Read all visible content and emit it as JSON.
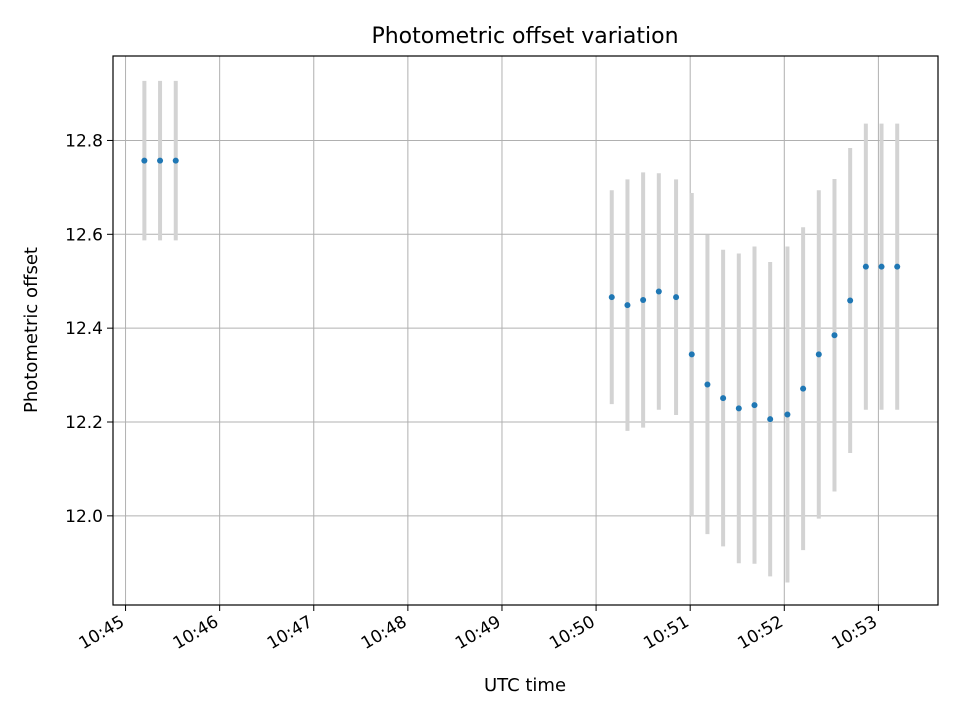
{
  "chart_data": {
    "type": "scatter",
    "title": "Photometric offset variation",
    "xlabel": "UTC time",
    "ylabel": "Photometric offset",
    "xlim": [
      "10:44:52",
      "10:53:38"
    ],
    "ylim": [
      11.81,
      12.98
    ],
    "grid": true,
    "x_ticks": [
      "10:45",
      "10:46",
      "10:47",
      "10:48",
      "10:49",
      "10:50",
      "10:51",
      "10:52",
      "10:53"
    ],
    "y_ticks": [
      "12.0",
      "12.2",
      "12.4",
      "12.6",
      "12.8"
    ],
    "colors": {
      "marker": "#1f77b4",
      "errorbar": "#d3d3d3",
      "grid": "#b0b0b0"
    },
    "series": [
      {
        "points": [
          {
            "x": "10:45:12",
            "y": 12.757,
            "yerr": 0.17
          },
          {
            "x": "10:45:22",
            "y": 12.757,
            "yerr": 0.17
          },
          {
            "x": "10:45:32",
            "y": 12.757,
            "yerr": 0.17
          },
          {
            "x": "10:50:10",
            "y": 12.466,
            "yerr": 0.228
          },
          {
            "x": "10:50:20",
            "y": 12.449,
            "yerr": 0.268
          },
          {
            "x": "10:50:30",
            "y": 12.46,
            "yerr": 0.272
          },
          {
            "x": "10:50:40",
            "y": 12.478,
            "yerr": 0.252
          },
          {
            "x": "10:50:51",
            "y": 12.466,
            "yerr": 0.251
          },
          {
            "x": "10:51:01",
            "y": 12.344,
            "yerr": 0.344
          },
          {
            "x": "10:51:11",
            "y": 12.28,
            "yerr": 0.319
          },
          {
            "x": "10:51:21",
            "y": 12.251,
            "yerr": 0.316
          },
          {
            "x": "10:51:31",
            "y": 12.229,
            "yerr": 0.33
          },
          {
            "x": "10:51:41",
            "y": 12.236,
            "yerr": 0.338
          },
          {
            "x": "10:51:51",
            "y": 12.206,
            "yerr": 0.335
          },
          {
            "x": "10:52:02",
            "y": 12.216,
            "yerr": 0.358
          },
          {
            "x": "10:52:12",
            "y": 12.271,
            "yerr": 0.344
          },
          {
            "x": "10:52:22",
            "y": 12.344,
            "yerr": 0.35
          },
          {
            "x": "10:52:32",
            "y": 12.385,
            "yerr": 0.333
          },
          {
            "x": "10:52:42",
            "y": 12.459,
            "yerr": 0.325
          },
          {
            "x": "10:52:52",
            "y": 12.531,
            "yerr": 0.305
          },
          {
            "x": "10:53:02",
            "y": 12.531,
            "yerr": 0.305
          },
          {
            "x": "10:53:12",
            "y": 12.531,
            "yerr": 0.305
          }
        ]
      }
    ]
  }
}
